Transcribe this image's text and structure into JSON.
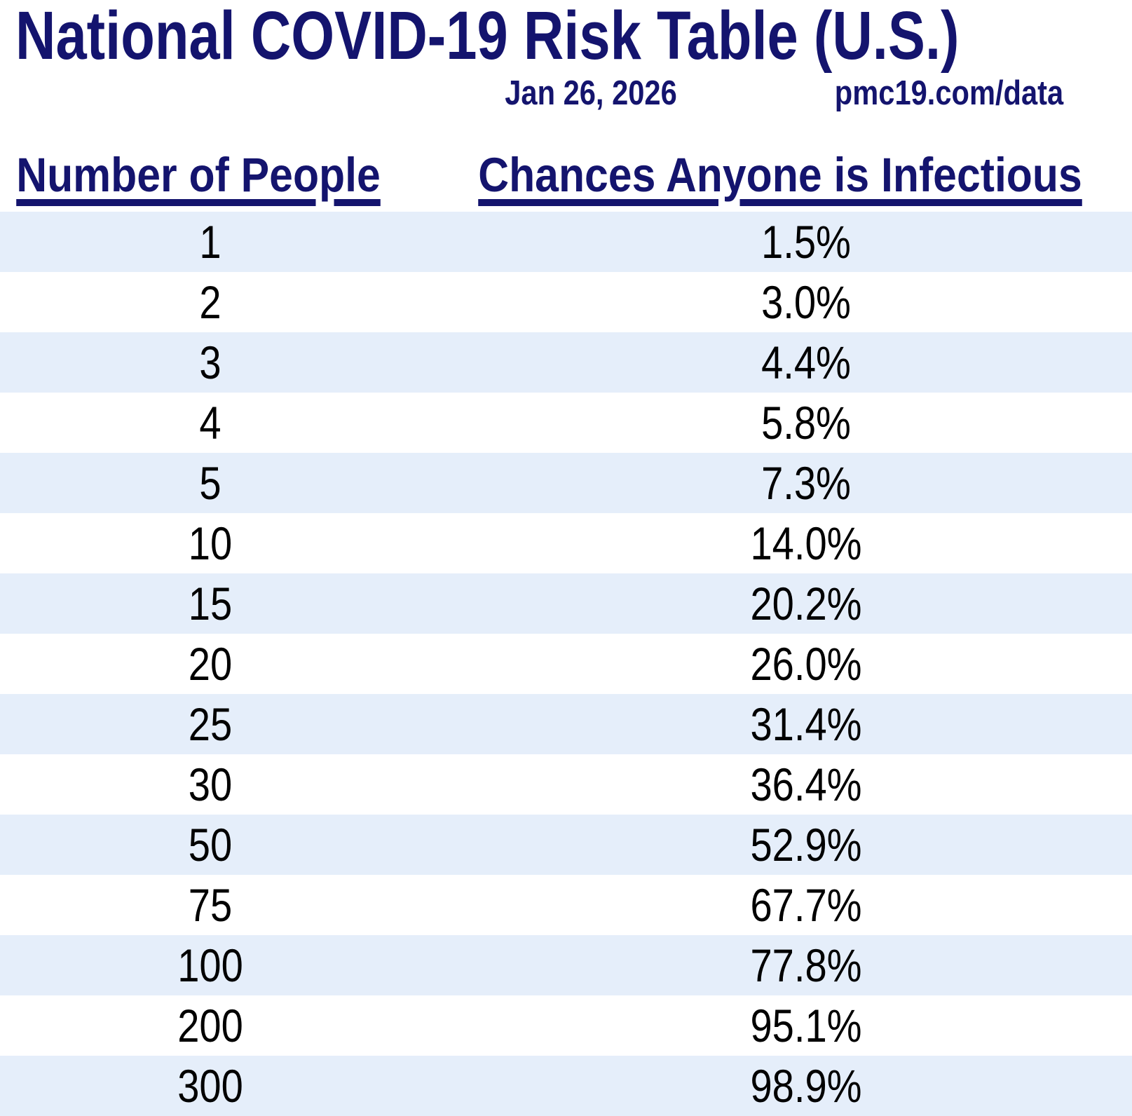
{
  "page": {
    "title": "National COVID-19 Risk Table (U.S.)",
    "date": "Jan 26, 2026",
    "source": "pmc19.com/data"
  },
  "table": {
    "headers": [
      "Number of People",
      "Chances Anyone is Infectious"
    ],
    "rows": [
      [
        "1",
        "1.5%"
      ],
      [
        "2",
        "3.0%"
      ],
      [
        "3",
        "4.4%"
      ],
      [
        "4",
        "5.8%"
      ],
      [
        "5",
        "7.3%"
      ],
      [
        "10",
        "14.0%"
      ],
      [
        "15",
        "20.2%"
      ],
      [
        "20",
        "26.0%"
      ],
      [
        "25",
        "31.4%"
      ],
      [
        "30",
        "36.4%"
      ],
      [
        "50",
        "52.9%"
      ],
      [
        "75",
        "67.7%"
      ],
      [
        "100",
        "77.8%"
      ],
      [
        "200",
        "95.1%"
      ],
      [
        "300",
        "98.9%"
      ]
    ]
  },
  "colors": {
    "heading_navy": "#14146E",
    "row_stripe_blue": "#E5EEFA",
    "data_text": "#000000",
    "background": "#FFFFFF"
  },
  "chart_data": {
    "type": "table",
    "title": "National COVID-19 Risk Table (U.S.)",
    "date": "Jan 26, 2026",
    "source": "pmc19.com/data",
    "columns": [
      "Number of People",
      "Chances Anyone is Infectious"
    ],
    "number_of_people": [
      1,
      2,
      3,
      4,
      5,
      10,
      15,
      20,
      25,
      30,
      50,
      75,
      100,
      200,
      300
    ],
    "chance_anyone_infectious_pct": [
      1.5,
      3.0,
      4.4,
      5.8,
      7.3,
      14.0,
      20.2,
      26.0,
      31.4,
      36.4,
      52.9,
      67.7,
      77.8,
      95.1,
      98.9
    ],
    "layout": {
      "striped_rows": true,
      "stripe_on_odd_rows": true,
      "header_underlined": true
    }
  }
}
